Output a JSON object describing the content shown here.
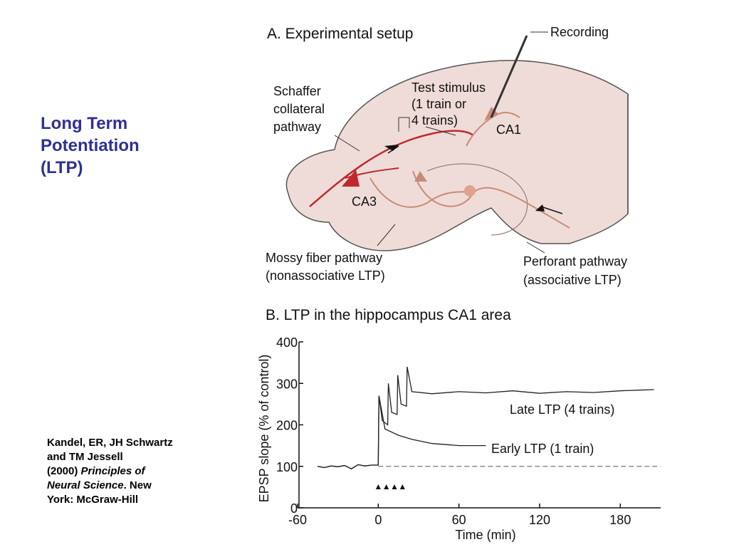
{
  "slide": {
    "title_lines": [
      "Long Term",
      "Potentiation",
      "(LTP)"
    ],
    "citation": {
      "lines": [
        [
          {
            "text": "Kandel, ER, JH Schwartz"
          }
        ],
        [
          {
            "text": "and TM Jessell"
          }
        ],
        [
          {
            "text": "(2000) "
          },
          {
            "text": "Principles of",
            "italic": true
          }
        ],
        [
          {
            "text": "Neural Science",
            "italic": true
          },
          {
            "text": ". New"
          }
        ],
        [
          {
            "text": "York: McGraw-Hill"
          }
        ]
      ]
    }
  },
  "diagram": {
    "title": "A. Experimental setup",
    "labels": {
      "recording": [
        "Recording"
      ],
      "schaffer": [
        "Schaffer",
        "collateral",
        "pathway"
      ],
      "test_stimulus": [
        "Test stimulus",
        "(1 train or",
        "4 trains)"
      ],
      "ca1": [
        "CA1"
      ],
      "ca3": [
        "CA3"
      ],
      "mossy": [
        "Mossy fiber pathway",
        "(nonassociative LTP)"
      ],
      "perforant": [
        "Perforant pathway",
        "(associative LTP)"
      ]
    }
  },
  "chart_data": {
    "type": "line",
    "title": "B. LTP in the hippocampus CA1 area",
    "x_label": "Time (min)",
    "y_label": "EPSP slope (% of control)",
    "xlim": [
      -60,
      210
    ],
    "ylim": [
      0,
      400
    ],
    "xticks": [
      -60,
      0,
      60,
      120,
      180
    ],
    "yticks": [
      0,
      100,
      200,
      300,
      400
    ],
    "baseline": 100,
    "stimulus_markers": [
      0,
      6,
      12,
      18
    ],
    "series": [
      {
        "name": "Late LTP (4 trains)",
        "color": "#222222",
        "x": [
          -45,
          -40,
          -35,
          -30,
          -25,
          -20,
          -15,
          -10,
          -5,
          0,
          0.5,
          3,
          7,
          7.5,
          10,
          14,
          14.5,
          17,
          21,
          21.5,
          25,
          40,
          60,
          80,
          100,
          120,
          140,
          160,
          180,
          205
        ],
        "values": [
          100,
          97,
          101,
          99,
          102,
          94,
          104,
          101,
          103,
          103,
          270,
          210,
          200,
          300,
          230,
          225,
          320,
          250,
          245,
          340,
          280,
          275,
          280,
          277,
          282,
          276,
          280,
          278,
          282,
          285
        ]
      },
      {
        "name": "Early LTP (1 train)",
        "color": "#222222",
        "x": [
          -45,
          -40,
          -35,
          -30,
          -25,
          -20,
          -15,
          -10,
          -5,
          0,
          0.5,
          5,
          15,
          25,
          40,
          60,
          80
        ],
        "values": [
          100,
          97,
          101,
          99,
          102,
          94,
          104,
          101,
          103,
          103,
          270,
          190,
          175,
          165,
          155,
          150,
          150
        ]
      }
    ]
  }
}
